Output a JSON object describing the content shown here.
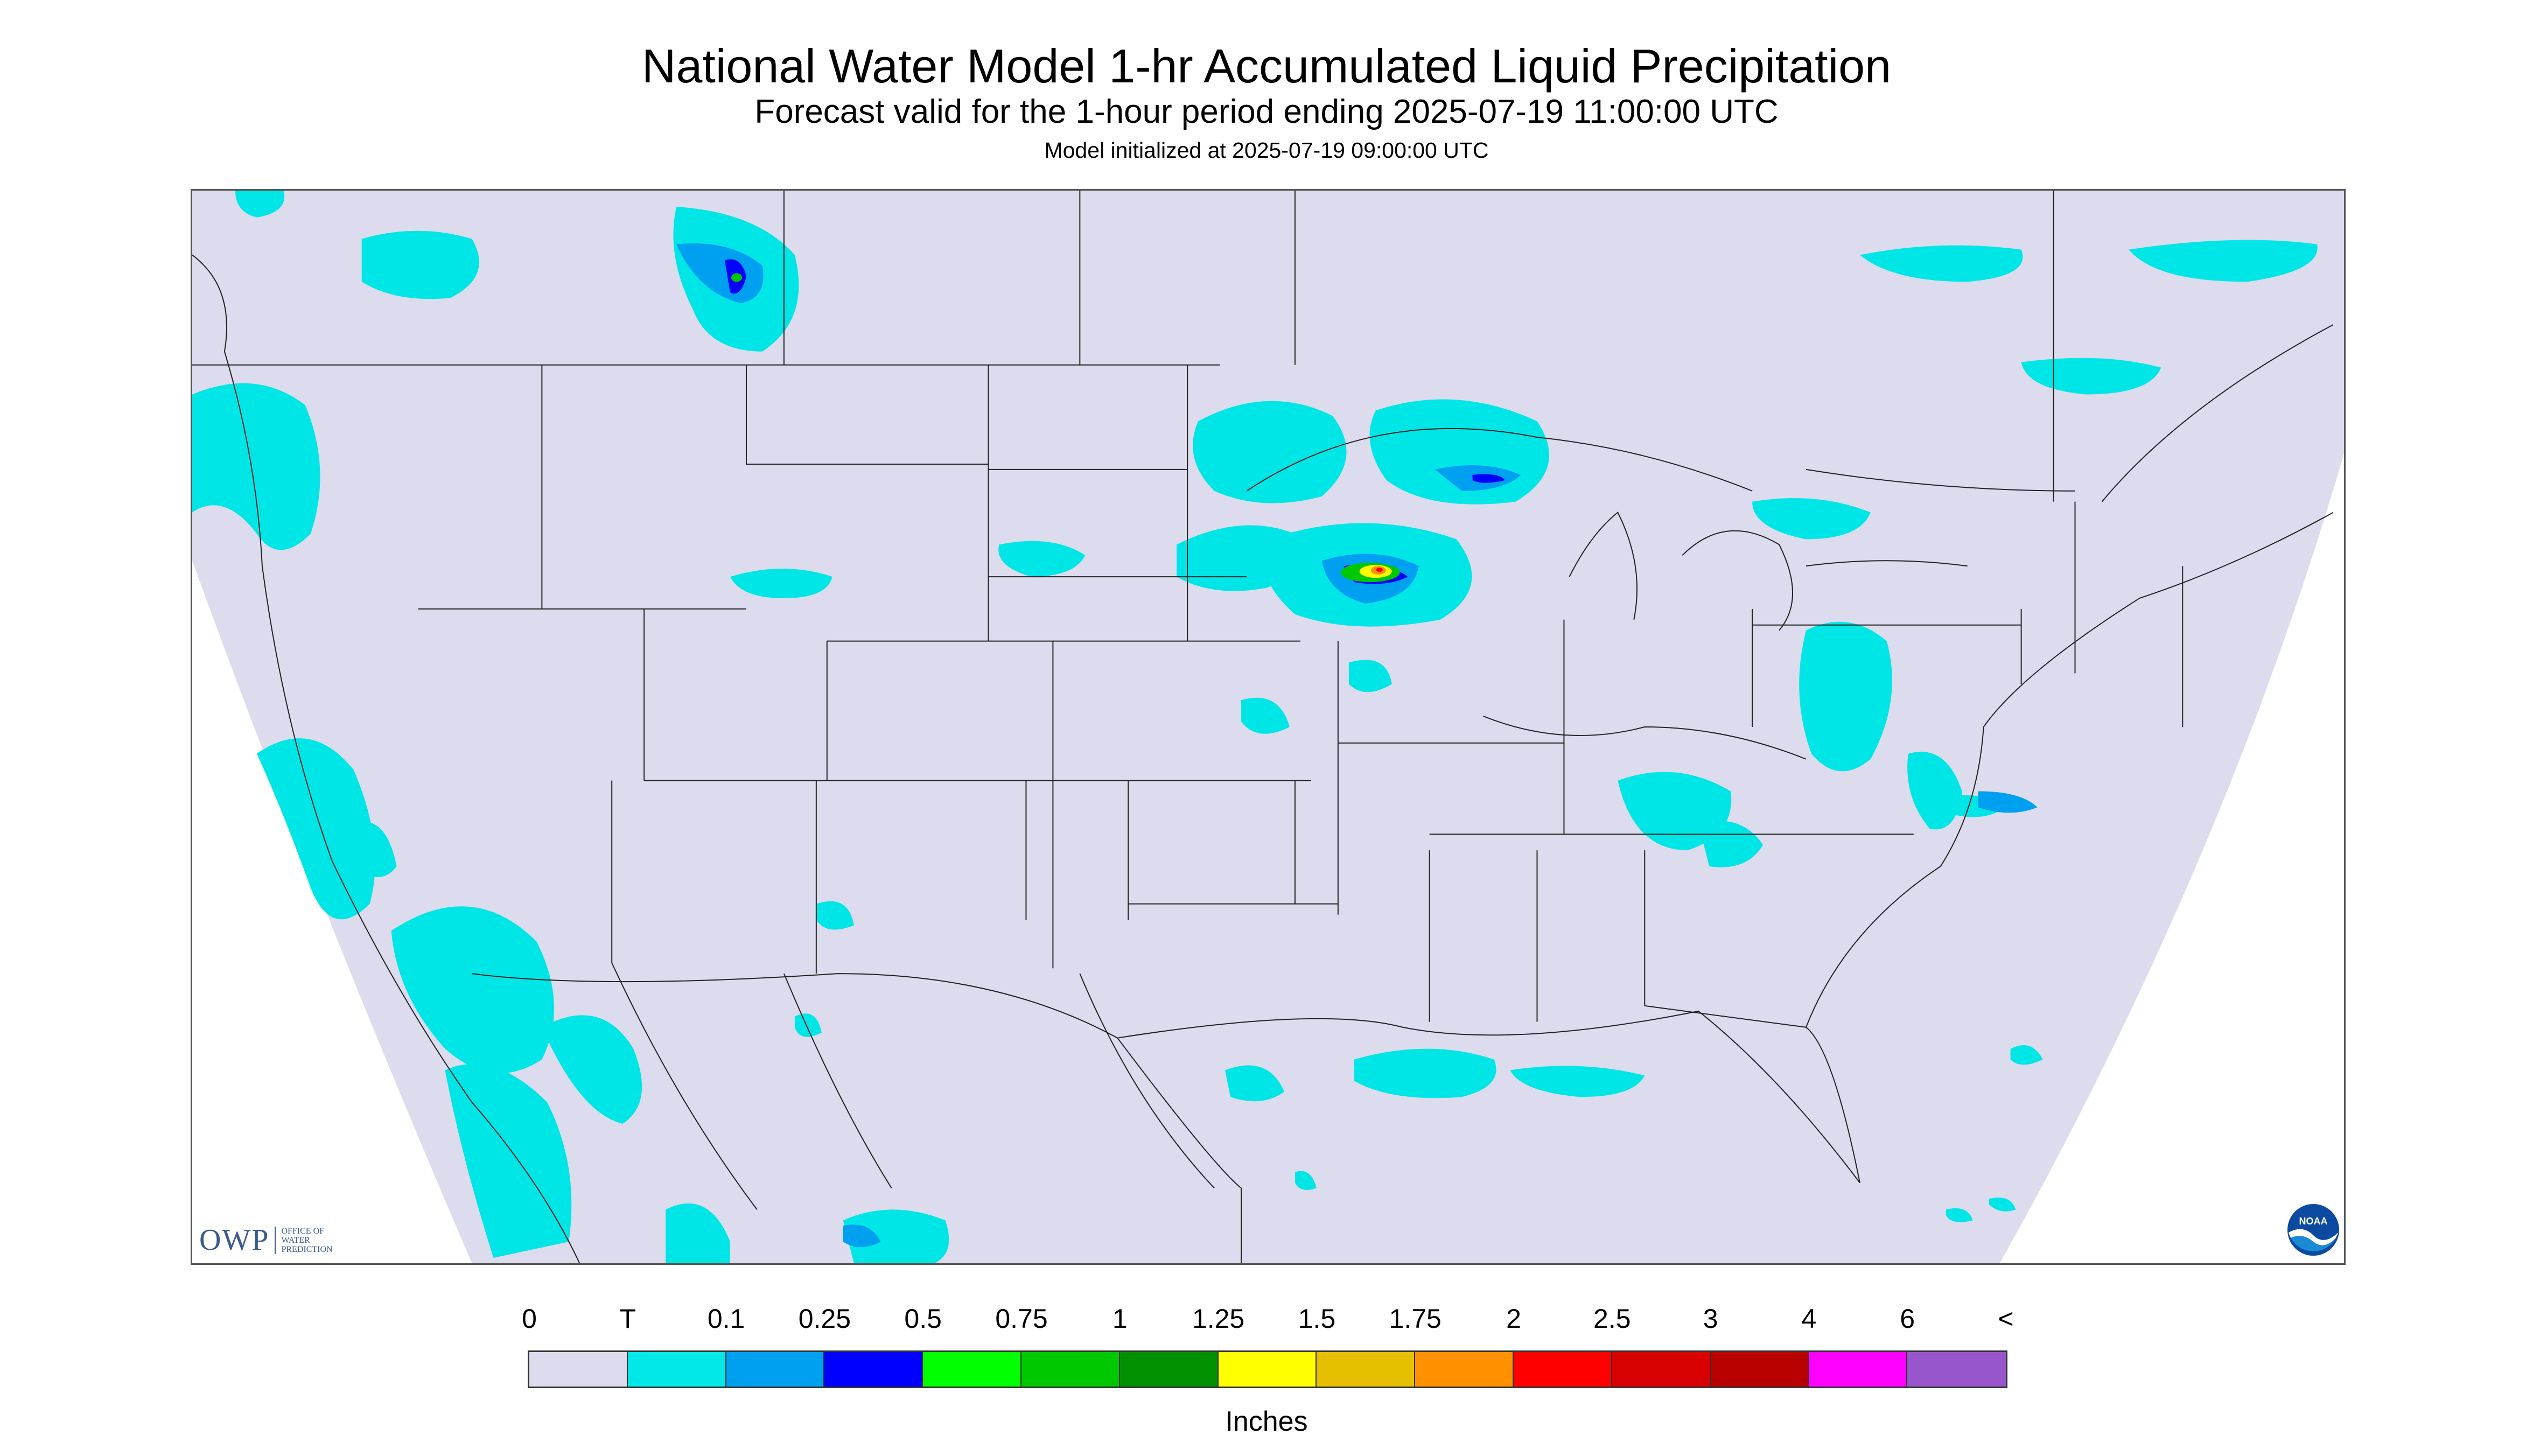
{
  "title": "National Water Model 1-hr Accumulated Liquid Precipitation",
  "subtitle": "Forecast valid for the 1-hour period ending 2025-07-19 11:00:00 UTC",
  "init_line": "Model initialized at 2025-07-19 09:00:00 UTC",
  "map": {
    "background_color": "#ffffff",
    "domain_color": "#dcdcee",
    "boundary_color": "#222222"
  },
  "logos": {
    "owp_text": "OWP",
    "owp_subtext_1": "OFFICE OF",
    "owp_subtext_2": "WATER",
    "owp_subtext_3": "PREDICTION",
    "noaa_text": "NOAA"
  },
  "legend": {
    "ticks": [
      "0",
      "T",
      "0.1",
      "0.25",
      "0.5",
      "0.75",
      "1",
      "1.25",
      "1.5",
      "1.75",
      "2",
      "2.5",
      "3",
      "4",
      "6",
      "<"
    ],
    "colors": [
      "#dcdcee",
      "#00e8e8",
      "#00a0f0",
      "#0000ff",
      "#00ff00",
      "#00c800",
      "#009000",
      "#ffff00",
      "#e6c000",
      "#ff9000",
      "#ff0000",
      "#d80000",
      "#b80000",
      "#ff00ff",
      "#9955cc"
    ],
    "units": "Inches"
  }
}
